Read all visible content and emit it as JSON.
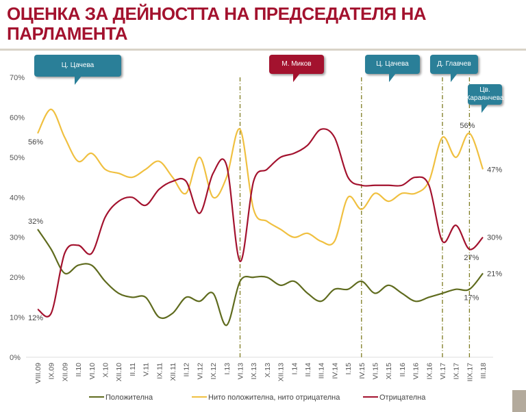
{
  "title": "ОЦЕНКА ЗА ДЕЙНОСТТА НА ПРЕДСЕДАТЕЛЯ НА ПАРЛАМЕНТА",
  "callouts": [
    "Ц. Цачева",
    "М. Миков",
    "Ц. Цачева",
    "Д. Главчев",
    "Цв. Караянчева"
  ],
  "chart_data": {
    "type": "line",
    "title": "ОЦЕНКА ЗА ДЕЙНОСТТА НА ПРЕДСЕДАТЕЛЯ НА ПАРЛАМЕНТА",
    "categories": [
      "VIII.09",
      "IX.09",
      "XII.09",
      "II.10",
      "VI.10",
      "X.10",
      "XII.10",
      "II.11",
      "V.11",
      "IX.11",
      "XII.11",
      "II.12",
      "VI.12",
      "IX.12",
      "I.13",
      "VI.13",
      "IX.13",
      "X.13",
      "XII.13",
      "I.14",
      "II.14",
      "III.14",
      "IV.14",
      "I.15",
      "IV.15",
      "VI.15",
      "XI.15",
      "II.16",
      "VI.16",
      "IX.16",
      "VI.17",
      "IX.17",
      "IIX.17",
      "III.18"
    ],
    "yticks": [
      "0%",
      "10%",
      "20%",
      "30%",
      "40%",
      "50%",
      "60%",
      "70%"
    ],
    "ylim": [
      0,
      70
    ],
    "series": [
      {
        "name": "Положителна",
        "color": "#5f6b1e",
        "values": [
          32,
          27,
          21,
          23,
          23,
          19,
          16,
          15,
          15,
          10,
          11,
          15,
          14,
          16,
          8,
          19,
          20,
          20,
          18,
          19,
          16,
          14,
          17,
          17,
          19,
          16,
          18,
          16,
          14,
          15,
          16,
          17,
          17,
          21
        ]
      },
      {
        "name": "Нито положителна, нито отрицателна",
        "color": "#f0c040",
        "values": [
          56,
          62,
          55,
          49,
          51,
          47,
          46,
          45,
          47,
          49,
          45,
          41,
          50,
          40,
          45,
          57,
          37,
          34,
          32,
          30,
          31,
          29,
          29,
          40,
          37,
          41,
          39,
          41,
          41,
          44,
          55,
          50,
          56,
          47
        ]
      },
      {
        "name": "Отрицателна",
        "color": "#a3122e",
        "values": [
          12,
          11,
          26,
          28,
          26,
          35,
          39,
          40,
          38,
          42,
          44,
          44,
          36,
          46,
          48,
          24,
          44,
          47,
          50,
          51,
          53,
          57,
          55,
          45,
          43,
          43,
          43,
          43,
          45,
          43,
          29,
          33,
          27,
          30
        ]
      }
    ],
    "vlines": [
      "VI.13",
      "IV.15",
      "VI.17",
      "IIX.17"
    ],
    "annotations": [
      {
        "text": "56%",
        "series": 1,
        "index": 0,
        "pos": "below-left"
      },
      {
        "text": "32%",
        "series": 0,
        "index": 0,
        "pos": "above-left"
      },
      {
        "text": "12%",
        "series": 2,
        "index": 0,
        "pos": "below-left"
      },
      {
        "text": "56%",
        "series": 1,
        "index": 32,
        "pos": "above-left"
      },
      {
        "text": "47%",
        "series": 1,
        "index": 33,
        "pos": "right"
      },
      {
        "text": "30%",
        "series": 2,
        "index": 33,
        "pos": "right"
      },
      {
        "text": "27%",
        "series": 2,
        "index": 32,
        "pos": "below"
      },
      {
        "text": "21%",
        "series": 0,
        "index": 33,
        "pos": "right"
      },
      {
        "text": "17%",
        "series": 0,
        "index": 32,
        "pos": "below"
      }
    ],
    "legend": "bottom"
  }
}
